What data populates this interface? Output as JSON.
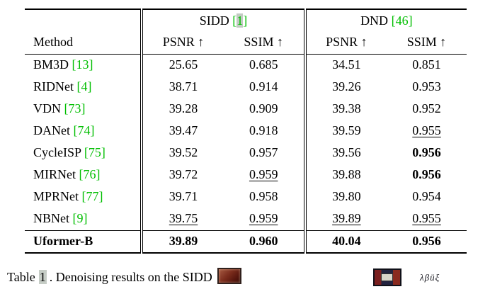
{
  "accent": {
    "citation_green": "#00be00",
    "link_highlight": "#c2cbc2"
  },
  "table": {
    "groups": [
      {
        "label": "SIDD",
        "cite_open": "[",
        "cite_num": "1",
        "cite_close": "]",
        "highlighted": true
      },
      {
        "label": "DND",
        "cite_open": "[",
        "cite_num": "46",
        "cite_close": "]",
        "highlighted": false
      }
    ],
    "col_headers": [
      "Method",
      "PSNR ↑",
      "SSIM ↑",
      "PSNR ↑",
      "SSIM ↑"
    ],
    "rows": [
      {
        "method": "BM3D",
        "cite": "[13]",
        "values": [
          "25.65",
          "0.685",
          "34.51",
          "0.851"
        ],
        "styles": [
          "",
          "",
          "",
          ""
        ]
      },
      {
        "method": "RIDNet",
        "cite": "[4]",
        "values": [
          "38.71",
          "0.914",
          "39.26",
          "0.953"
        ],
        "styles": [
          "",
          "",
          "",
          ""
        ]
      },
      {
        "method": "VDN",
        "cite": "[73]",
        "values": [
          "39.28",
          "0.909",
          "39.38",
          "0.952"
        ],
        "styles": [
          "",
          "",
          "",
          ""
        ]
      },
      {
        "method": "DANet",
        "cite": "[74]",
        "values": [
          "39.47",
          "0.918",
          "39.59",
          "0.955"
        ],
        "styles": [
          "",
          "",
          "",
          "u"
        ]
      },
      {
        "method": "CycleISP",
        "cite": "[75]",
        "values": [
          "39.52",
          "0.957",
          "39.56",
          "0.956"
        ],
        "styles": [
          "",
          "",
          "",
          "b"
        ]
      },
      {
        "method": "MIRNet",
        "cite": "[76]",
        "values": [
          "39.72",
          "0.959",
          "39.88",
          "0.956"
        ],
        "styles": [
          "",
          "u",
          "",
          "b"
        ]
      },
      {
        "method": "MPRNet",
        "cite": "[77]",
        "values": [
          "39.71",
          "0.958",
          "39.80",
          "0.954"
        ],
        "styles": [
          "",
          "",
          "",
          ""
        ]
      },
      {
        "method": "NBNet",
        "cite": "[9]",
        "values": [
          "39.75",
          "0.959",
          "39.89",
          "0.955"
        ],
        "styles": [
          "u",
          "u",
          "u",
          "u"
        ]
      },
      {
        "method": "Uformer-B",
        "cite": "",
        "values": [
          "39.89",
          "0.960",
          "40.04",
          "0.956"
        ],
        "styles": [
          "b",
          "b",
          "b",
          "b"
        ],
        "bold_method": true,
        "final": true
      }
    ]
  },
  "caption": {
    "prefix": "Table",
    "number": "1",
    "rest": ". Denoising results on the SIDD",
    "fragment_text": "λβüξ"
  }
}
